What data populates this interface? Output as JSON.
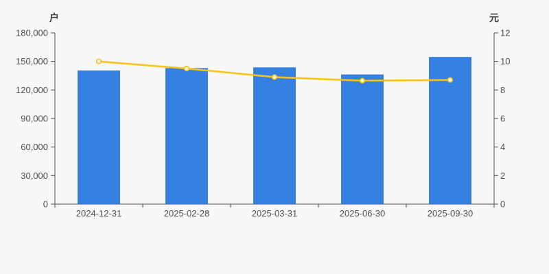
{
  "page": {
    "background_color": "#f8f8f8"
  },
  "chart_data": {
    "type": "bar",
    "categories": [
      "2024-12-31",
      "2025-02-28",
      "2025-03-31",
      "2025-06-30",
      "2025-09-30"
    ],
    "series": [
      {
        "id": "bar-series",
        "type": "bar",
        "y_axis": "left",
        "color": "#3580e0",
        "values": [
          140500,
          143000,
          143800,
          136300,
          154700
        ]
      },
      {
        "id": "line-series",
        "type": "line",
        "y_axis": "right",
        "color": "#f9c31e",
        "marker": "hollow-circle",
        "marker_fill": "#ffffff",
        "values": [
          10.0,
          9.5,
          8.9,
          8.65,
          8.7
        ]
      }
    ],
    "left_axis": {
      "name": "户",
      "min": 0,
      "max": 180000,
      "tick_labels": [
        "180,000",
        "150,000",
        "120,000",
        "90,000",
        "60,000",
        "30,000",
        "0"
      ]
    },
    "right_axis": {
      "name": "元",
      "min": 0,
      "max": 12,
      "tick_labels": [
        "12",
        "10",
        "8",
        "6",
        "4",
        "2",
        "0"
      ]
    },
    "x_axis": {
      "labels": [
        "2024-12-31",
        "2025-02-28",
        "2025-03-31",
        "2025-06-30",
        "2025-09-30"
      ]
    },
    "legend": "none",
    "grid_lines": false,
    "axis_color": "#4c4c4c",
    "label_color": "#4d4d4d"
  }
}
